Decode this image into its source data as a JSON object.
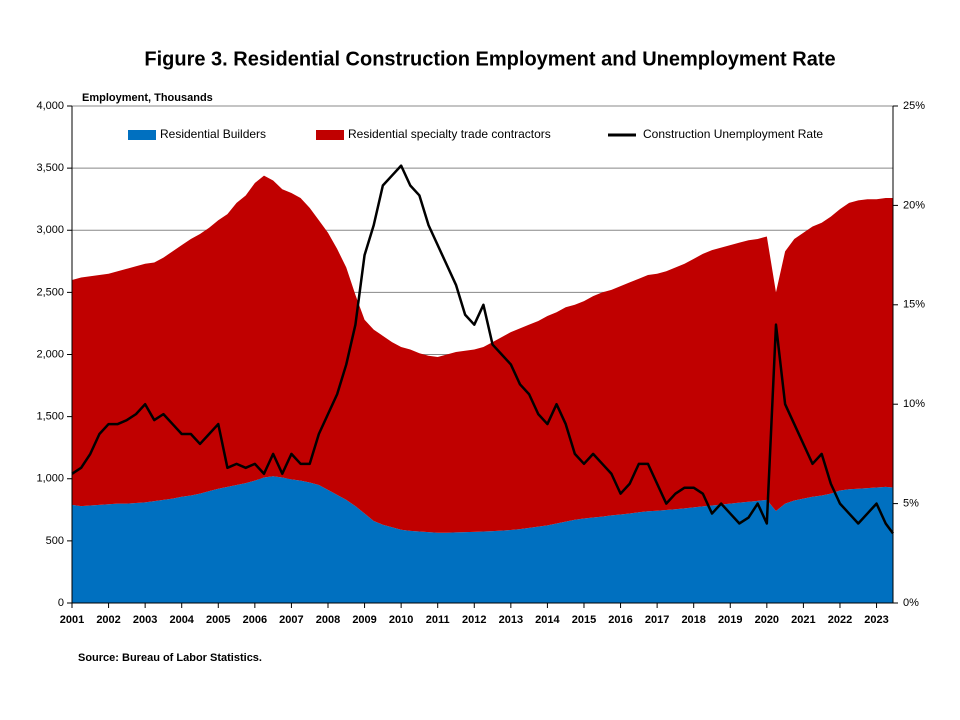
{
  "chart_data": {
    "type": "stacked_area_line",
    "title": "Figure 3. Residential Construction Employment and Unemployment Rate",
    "y_label": "Employment, Thousands",
    "note": "Source: Bureau of Labor Statistics.",
    "x": [
      2001,
      2001.25,
      2001.5,
      2001.75,
      2002,
      2002.25,
      2002.5,
      2002.75,
      2003,
      2003.25,
      2003.5,
      2003.75,
      2004,
      2004.25,
      2004.5,
      2004.75,
      2005,
      2005.25,
      2005.5,
      2005.75,
      2006,
      2006.25,
      2006.5,
      2006.75,
      2007,
      2007.25,
      2007.5,
      2007.75,
      2008,
      2008.25,
      2008.5,
      2008.75,
      2009,
      2009.25,
      2009.5,
      2009.75,
      2010,
      2010.25,
      2010.5,
      2010.75,
      2011,
      2011.25,
      2011.5,
      2011.75,
      2012,
      2012.25,
      2012.5,
      2012.75,
      2013,
      2013.25,
      2013.5,
      2013.75,
      2014,
      2014.25,
      2014.5,
      2014.75,
      2015,
      2015.25,
      2015.5,
      2015.75,
      2016,
      2016.25,
      2016.5,
      2016.75,
      2017,
      2017.25,
      2017.5,
      2017.75,
      2018,
      2018.25,
      2018.5,
      2018.75,
      2019,
      2019.25,
      2019.5,
      2019.75,
      2020,
      2020.25,
      2020.5,
      2020.75,
      2021,
      2021.25,
      2021.5,
      2021.75,
      2022,
      2022.25,
      2022.5,
      2022.75,
      2023,
      2023.25,
      2023.45
    ],
    "series": [
      {
        "name": "Residential Builders",
        "color": "#0070c0",
        "values": [
          790,
          780,
          785,
          790,
          795,
          800,
          800,
          805,
          810,
          820,
          830,
          840,
          855,
          865,
          880,
          900,
          920,
          935,
          950,
          965,
          985,
          1010,
          1020,
          1010,
          995,
          985,
          970,
          950,
          910,
          870,
          830,
          780,
          720,
          660,
          630,
          610,
          590,
          580,
          575,
          570,
          565,
          565,
          568,
          570,
          572,
          575,
          578,
          582,
          588,
          595,
          605,
          615,
          625,
          640,
          655,
          670,
          680,
          688,
          695,
          705,
          712,
          720,
          730,
          738,
          742,
          748,
          755,
          762,
          770,
          778,
          785,
          792,
          800,
          808,
          815,
          822,
          830,
          740,
          800,
          825,
          840,
          855,
          865,
          880,
          905,
          915,
          920,
          925,
          930,
          935,
          930
        ]
      },
      {
        "name": "Residential specialty trade contractors",
        "color": "#c00000",
        "values": [
          1810,
          1840,
          1845,
          1850,
          1855,
          1870,
          1890,
          1905,
          1920,
          1920,
          1950,
          1990,
          2025,
          2065,
          2090,
          2120,
          2160,
          2195,
          2270,
          2315,
          2395,
          2430,
          2380,
          2320,
          2305,
          2275,
          2210,
          2130,
          2070,
          1980,
          1870,
          1700,
          1560,
          1540,
          1520,
          1490,
          1470,
          1460,
          1435,
          1420,
          1415,
          1435,
          1452,
          1460,
          1468,
          1485,
          1522,
          1558,
          1592,
          1615,
          1635,
          1655,
          1685,
          1700,
          1725,
          1730,
          1750,
          1782,
          1805,
          1815,
          1838,
          1860,
          1880,
          1902,
          1908,
          1922,
          1945,
          1968,
          2000,
          2032,
          2055,
          2068,
          2080,
          2092,
          2105,
          2108,
          2120,
          1760,
          2030,
          2105,
          2140,
          2175,
          2195,
          2230,
          2265,
          2305,
          2320,
          2325,
          2320,
          2325,
          2330
        ]
      },
      {
        "name": "Construction Unemployment Rate",
        "color": "#000000",
        "axis": "y2",
        "values": [
          6.5,
          6.8,
          7.5,
          8.5,
          9.0,
          9.0,
          9.2,
          9.5,
          10.0,
          9.2,
          9.5,
          9.0,
          8.5,
          8.5,
          8.0,
          8.5,
          9.0,
          6.8,
          7.0,
          6.8,
          7.0,
          6.5,
          7.5,
          6.5,
          7.5,
          7.0,
          7.0,
          8.5,
          9.5,
          10.5,
          12.0,
          14.0,
          17.5,
          19.0,
          21.0,
          21.5,
          22.0,
          21.0,
          20.5,
          19.0,
          18.0,
          17.0,
          16.0,
          14.5,
          14.0,
          15.0,
          13.0,
          12.5,
          12.0,
          11.0,
          10.5,
          9.5,
          9.0,
          10.0,
          9.0,
          7.5,
          7.0,
          7.5,
          7.0,
          6.5,
          5.5,
          6.0,
          7.0,
          7.0,
          6.0,
          5.0,
          5.5,
          5.8,
          5.8,
          5.5,
          4.5,
          5.0,
          4.5,
          4.0,
          4.3,
          5.0,
          4.0,
          14.0,
          10.0,
          9.0,
          8.0,
          7.0,
          7.5,
          6.0,
          5.0,
          4.5,
          4.0,
          4.5,
          5.0,
          4.0,
          3.5
        ]
      }
    ],
    "xlim": [
      2001,
      2023.45
    ],
    "xticks": [
      2001,
      2002,
      2003,
      2004,
      2005,
      2006,
      2007,
      2008,
      2009,
      2010,
      2011,
      2012,
      2013,
      2014,
      2015,
      2016,
      2017,
      2018,
      2019,
      2020,
      2021,
      2022,
      2023
    ],
    "ylim": [
      0,
      4000
    ],
    "yticks": [
      0,
      500,
      {
        "value": 1000,
        "label": "1,000"
      },
      {
        "value": 1500,
        "label": "1,500"
      },
      {
        "value": 2000,
        "label": "2,000"
      },
      {
        "value": 2500,
        "label": "2,500"
      },
      {
        "value": 3000,
        "label": "3,000"
      },
      {
        "value": 3500,
        "label": "3,500"
      },
      {
        "value": 4000,
        "label": "4,000"
      }
    ],
    "y2lim": [
      0,
      25
    ],
    "y2ticks": [
      {
        "value": 0,
        "label": "0%"
      },
      {
        "value": 5,
        "label": "5%"
      },
      {
        "value": 10,
        "label": "10%"
      },
      {
        "value": 15,
        "label": "15%"
      },
      {
        "value": 20,
        "label": "20%"
      },
      {
        "value": 25,
        "label": "25%"
      }
    ],
    "grid": true
  }
}
